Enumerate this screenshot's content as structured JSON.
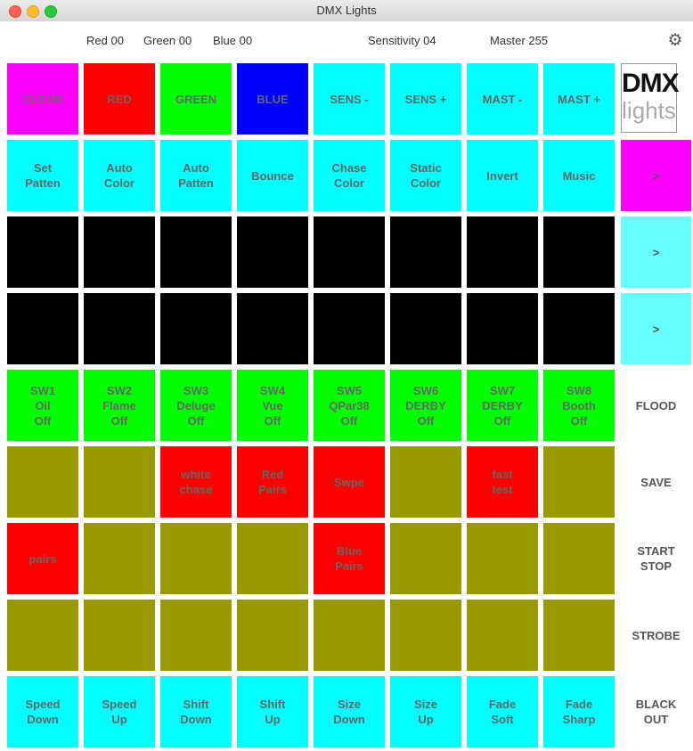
{
  "window": {
    "title": "DMX Lights"
  },
  "status": {
    "red": "Red 00",
    "green": "Green 00",
    "blue": "Blue 00",
    "sensitivity": "Sensitivity 04",
    "master": "Master 255"
  },
  "logo": {
    "line1": "DMX",
    "line2": "lights"
  },
  "colors": {
    "magenta": "#ff00ff",
    "red": "#ff0000",
    "green": "#00ff00",
    "blue": "#0000ff",
    "cyan": "#00ffff",
    "black": "#000000",
    "olive": "#999900",
    "light_cyan": "#66ffff"
  },
  "rows": [
    [
      {
        "label": "CLEAR",
        "color": "#ff00ff"
      },
      {
        "label": "RED",
        "color": "#ff0000"
      },
      {
        "label": "GREEN",
        "color": "#00ff00"
      },
      {
        "label": "BLUE",
        "color": "#0000ff"
      },
      {
        "label": "SENS -",
        "color": "#00ffff"
      },
      {
        "label": "SENS +",
        "color": "#00ffff"
      },
      {
        "label": "MAST -",
        "color": "#00ffff"
      },
      {
        "label": "MAST +",
        "color": "#00ffff"
      }
    ],
    [
      {
        "label": "Set\nPatten",
        "color": "#00ffff"
      },
      {
        "label": "Auto\nColor",
        "color": "#00ffff"
      },
      {
        "label": "Auto\nPatten",
        "color": "#00ffff"
      },
      {
        "label": "Bounce",
        "color": "#00ffff"
      },
      {
        "label": "Chase\nColor",
        "color": "#00ffff"
      },
      {
        "label": "Static\nColor",
        "color": "#00ffff"
      },
      {
        "label": "Invert",
        "color": "#00ffff"
      },
      {
        "label": "Music",
        "color": "#00ffff"
      }
    ],
    [
      {
        "label": "",
        "color": "#000000"
      },
      {
        "label": "",
        "color": "#000000"
      },
      {
        "label": "",
        "color": "#000000"
      },
      {
        "label": "",
        "color": "#000000"
      },
      {
        "label": "",
        "color": "#000000"
      },
      {
        "label": "",
        "color": "#000000"
      },
      {
        "label": "",
        "color": "#000000"
      },
      {
        "label": "",
        "color": "#000000"
      }
    ],
    [
      {
        "label": "",
        "color": "#000000"
      },
      {
        "label": "",
        "color": "#000000"
      },
      {
        "label": "",
        "color": "#000000"
      },
      {
        "label": "",
        "color": "#000000"
      },
      {
        "label": "",
        "color": "#000000"
      },
      {
        "label": "",
        "color": "#000000"
      },
      {
        "label": "",
        "color": "#000000"
      },
      {
        "label": "",
        "color": "#000000"
      }
    ],
    [
      {
        "label": "SW1\nOil\nOff",
        "color": "#00ff00"
      },
      {
        "label": "SW2\nFlame\nOff",
        "color": "#00ff00"
      },
      {
        "label": "SW3\nDeluge\nOff",
        "color": "#00ff00"
      },
      {
        "label": "SW4\nVue\nOff",
        "color": "#00ff00"
      },
      {
        "label": "SW5\nQPar38\nOff",
        "color": "#00ff00"
      },
      {
        "label": "SW6\nDERBY\nOff",
        "color": "#00ff00"
      },
      {
        "label": "SW7\nDERBY\nOff",
        "color": "#00ff00"
      },
      {
        "label": "SW8\nBooth\nOff",
        "color": "#00ff00"
      }
    ],
    [
      {
        "label": "",
        "color": "#999900"
      },
      {
        "label": "",
        "color": "#999900"
      },
      {
        "label": "white\nchase",
        "color": "#ff0000"
      },
      {
        "label": "Red\nPairs",
        "color": "#ff0000"
      },
      {
        "label": "Swpe",
        "color": "#ff0000"
      },
      {
        "label": "",
        "color": "#999900"
      },
      {
        "label": "fast\ntest",
        "color": "#ff0000"
      },
      {
        "label": "",
        "color": "#999900"
      }
    ],
    [
      {
        "label": "pairs",
        "color": "#ff0000"
      },
      {
        "label": "",
        "color": "#999900"
      },
      {
        "label": "",
        "color": "#999900"
      },
      {
        "label": "",
        "color": "#999900"
      },
      {
        "label": "Blue\nPairs",
        "color": "#ff0000"
      },
      {
        "label": "",
        "color": "#999900"
      },
      {
        "label": "",
        "color": "#999900"
      },
      {
        "label": "",
        "color": "#999900"
      }
    ],
    [
      {
        "label": "",
        "color": "#999900"
      },
      {
        "label": "",
        "color": "#999900"
      },
      {
        "label": "",
        "color": "#999900"
      },
      {
        "label": "",
        "color": "#999900"
      },
      {
        "label": "",
        "color": "#999900"
      },
      {
        "label": "",
        "color": "#999900"
      },
      {
        "label": "",
        "color": "#999900"
      },
      {
        "label": "",
        "color": "#999900"
      }
    ],
    [
      {
        "label": "Speed\nDown",
        "color": "#00ffff"
      },
      {
        "label": "Speed\nUp",
        "color": "#00ffff"
      },
      {
        "label": "Shift\nDown",
        "color": "#00ffff"
      },
      {
        "label": "Shift\nUp",
        "color": "#00ffff"
      },
      {
        "label": "Size\nDown",
        "color": "#00ffff"
      },
      {
        "label": "Size\nUp",
        "color": "#00ffff"
      },
      {
        "label": "Fade\nSoft",
        "color": "#00ffff"
      },
      {
        "label": "Fade\nSharp",
        "color": "#00ffff"
      }
    ]
  ],
  "side": [
    {
      "label": ">",
      "color": "#ff00ff"
    },
    {
      "label": ">",
      "color": "#66ffff"
    },
    {
      "label": ">",
      "color": "#66ffff"
    },
    {
      "label": "FLOOD",
      "color": ""
    },
    {
      "label": "SAVE",
      "color": ""
    },
    {
      "label": "START\nSTOP",
      "color": ""
    },
    {
      "label": "STROBE",
      "color": ""
    },
    {
      "label": "BLACK\nOUT",
      "color": ""
    }
  ]
}
